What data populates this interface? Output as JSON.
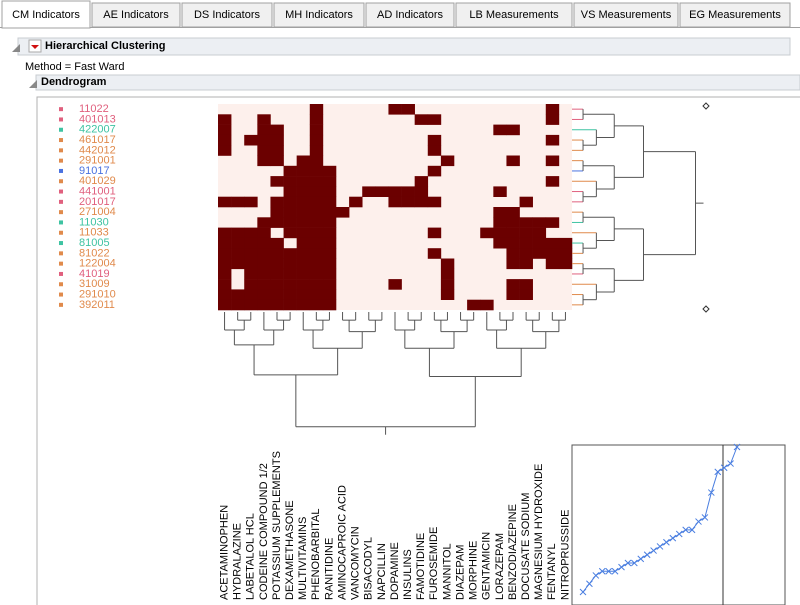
{
  "tabs": [
    "CM Indicators",
    "AE Indicators",
    "DS Indicators",
    "MH Indicators",
    "AD Indicators",
    "LB Measurements",
    "VS Measurements",
    "EG Measurements"
  ],
  "active_tab": 0,
  "outline_title": "Hierarchical Clustering",
  "method": "Method = Fast Ward",
  "dendrogram_title": "Dendrogram",
  "heatmap": {
    "row_labels": [
      "11022",
      "401013",
      "422007",
      "461017",
      "442012",
      "291001",
      "91017",
      "401029",
      "441001",
      "201017",
      "271004",
      "11030",
      "11033",
      "81005",
      "81022",
      "122004",
      "41019",
      "31009",
      "291010",
      "392011"
    ],
    "row_colors": [
      "#e0607e",
      "#e0607e",
      "#3ec3a2",
      "#e08a4c",
      "#e08a4c",
      "#e08a4c",
      "#4a72e0",
      "#e08a4c",
      "#e0607e",
      "#e0607e",
      "#e08a4c",
      "#3ec3a2",
      "#e08a4c",
      "#3ec3a2",
      "#e08a4c",
      "#e08a4c",
      "#e0607e",
      "#e08a4c",
      "#e08a4c",
      "#e08a4c"
    ],
    "column_labels": [
      "ACETAMINOPHEN",
      "HYDRALAZINE",
      "LABETALOL HCL",
      "CODEINE COMPOUND 1/2",
      "POTASSIUM SUPPLEMENTS",
      "DEXAMETHASONE",
      "MULTIVITAMINS",
      "PHENOBARBITAL",
      "RANITIDINE",
      "AMINOCAPROIC ACID",
      "VANCOMYCIN",
      "BISACODYL",
      "NAPCILLIN",
      "DOPAMINE",
      "INSULINS",
      "FAMOTIDINE",
      "FUROSEMIDE",
      "MANNITOL",
      "DIAZEPAM",
      "MORPHINE",
      "GENTAMICIN",
      "LORAZEPAM",
      "BENZODIAZEPINE",
      "DOCUSATE SODIUM",
      "MAGNESIUM HYDROXIDE",
      "FENTANYL",
      "NITROPRUSSIDE"
    ],
    "dark_cells": [
      [
        7,
        13,
        14,
        25
      ],
      [
        0,
        3,
        7,
        15,
        16,
        25
      ],
      [
        0,
        3,
        4,
        7,
        21,
        22
      ],
      [
        0,
        2,
        3,
        4,
        7,
        16,
        25
      ],
      [
        0,
        3,
        4,
        7,
        16
      ],
      [
        3,
        4,
        6,
        7,
        17,
        22,
        25
      ],
      [
        5,
        6,
        7,
        8,
        16
      ],
      [
        4,
        5,
        6,
        7,
        8,
        15,
        25
      ],
      [
        5,
        6,
        7,
        8,
        11,
        12,
        13,
        14,
        15,
        21
      ],
      [
        0,
        1,
        2,
        4,
        5,
        6,
        7,
        8,
        10,
        13,
        14,
        15,
        16,
        23
      ],
      [
        4,
        5,
        6,
        7,
        8,
        9,
        21,
        22
      ],
      [
        3,
        4,
        5,
        6,
        7,
        8,
        21,
        22,
        23,
        24,
        25
      ],
      [
        0,
        1,
        2,
        3,
        5,
        6,
        7,
        8,
        16,
        20,
        21,
        22,
        23,
        24
      ],
      [
        0,
        1,
        2,
        3,
        4,
        6,
        7,
        8,
        21,
        22,
        23,
        24,
        25,
        26
      ],
      [
        0,
        1,
        2,
        3,
        4,
        5,
        6,
        7,
        8,
        16,
        22,
        23,
        24,
        25,
        26
      ],
      [
        0,
        1,
        2,
        3,
        4,
        5,
        6,
        7,
        8,
        17,
        22,
        23,
        25,
        26
      ],
      [
        0,
        2,
        3,
        4,
        5,
        6,
        7,
        8,
        17
      ],
      [
        0,
        2,
        3,
        4,
        5,
        6,
        7,
        8,
        13,
        17,
        22,
        23
      ],
      [
        0,
        1,
        2,
        3,
        4,
        5,
        6,
        7,
        8,
        17,
        22,
        23
      ],
      [
        0,
        1,
        2,
        3,
        4,
        5,
        6,
        7,
        8,
        19,
        20
      ]
    ],
    "dark_color": "#6b0000",
    "light_color": "#fdf0ec"
  },
  "distance_plot": {
    "values": [
      1,
      3,
      5,
      6,
      6,
      6,
      7,
      8,
      8,
      9,
      10,
      11,
      12,
      13,
      14,
      15,
      16,
      16,
      18,
      19,
      25,
      30,
      31,
      32,
      36
    ]
  }
}
